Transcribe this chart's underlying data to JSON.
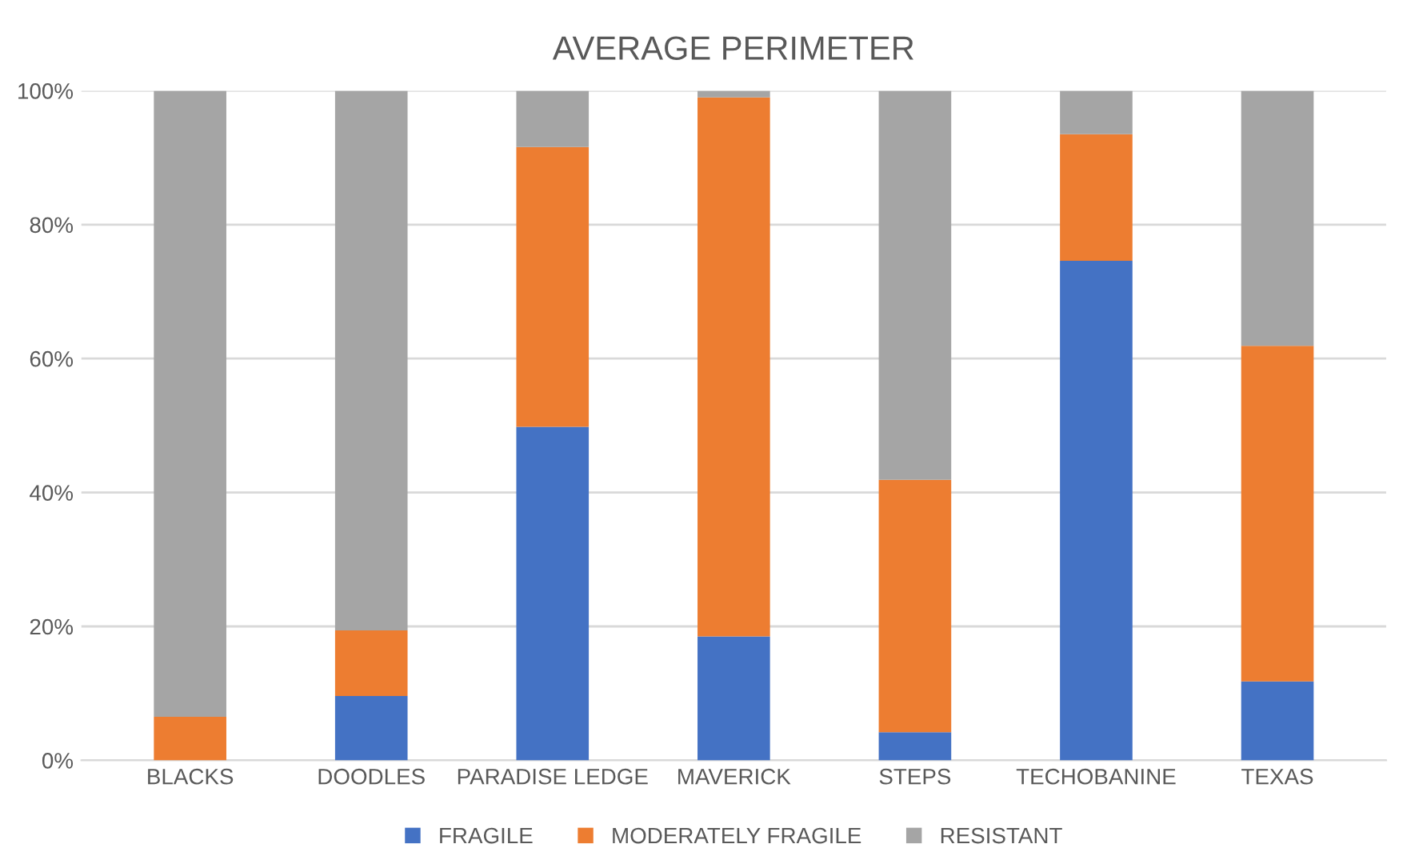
{
  "chart_data": {
    "type": "bar",
    "title": "AVERAGE PERIMETER",
    "stacked": true,
    "categories": [
      "BLACKS",
      "DOODLES",
      "PARADISE LEDGE",
      "MAVERICK",
      "STEPS",
      "TECHOBANINE",
      "TEXAS"
    ],
    "series": [
      {
        "name": "FRAGILE",
        "color": "#4472c4",
        "values": [
          0,
          9.6,
          49.8,
          18.5,
          4.2,
          74.6,
          11.8
        ]
      },
      {
        "name": "MODERATELY FRAGILE",
        "color": "#ed7d31",
        "values": [
          6.5,
          9.8,
          41.8,
          80.5,
          37.7,
          18.9,
          50.1
        ]
      },
      {
        "name": "RESISTANT",
        "color": "#a5a5a5",
        "values": [
          93.5,
          80.6,
          8.4,
          1.0,
          58.1,
          6.5,
          38.1
        ]
      }
    ],
    "ylim": [
      0,
      100
    ],
    "yticks": [
      {
        "value": 0,
        "label": "0%"
      },
      {
        "value": 20,
        "label": "20%"
      },
      {
        "value": 40,
        "label": "40%"
      },
      {
        "value": 60,
        "label": "60%"
      },
      {
        "value": 80,
        "label": "80%"
      },
      {
        "value": 100,
        "label": "100%"
      }
    ],
    "grid": "y",
    "legend": "bottom"
  }
}
